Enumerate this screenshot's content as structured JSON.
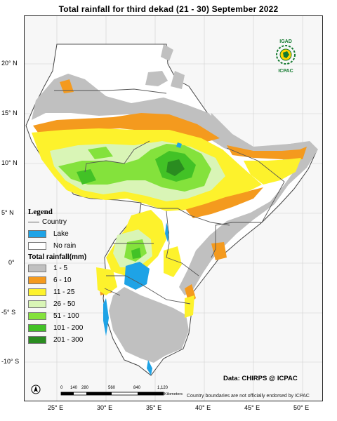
{
  "title": "Total rainfall  for third  dekad (21 - 30)  September 2022",
  "latitude_labels": [
    "20° N",
    "15° N",
    "10° N",
    "5° N",
    "0°",
    "-5° S",
    "-10° S"
  ],
  "longitude_labels": [
    "25° E",
    "30° E",
    "35° E",
    "40° E",
    "45° E",
    "50° E"
  ],
  "legend": {
    "title": "Legend",
    "country_label": "Country",
    "lake_label": "Lake",
    "no_rain_label": "No rain",
    "rain_title": "Total rainfall(mm)",
    "lake_color": "#1ea3e6",
    "classes": [
      {
        "label": "1 - 5",
        "color": "#c0c0c0"
      },
      {
        "label": "6 - 10",
        "color": "#f49a1e"
      },
      {
        "label": "11 - 25",
        "color": "#fdf22c"
      },
      {
        "label": "26 - 50",
        "color": "#d9f5b6"
      },
      {
        "label": "51 - 100",
        "color": "#84e23c"
      },
      {
        "label": "101 - 200",
        "color": "#42c226"
      },
      {
        "label": "201 - 300",
        "color": "#2a8c20"
      }
    ]
  },
  "logo": {
    "top_text": "IGAD",
    "bottom_text": "ICPAC"
  },
  "data_credit": "Data: CHIRPS @ ICPAC",
  "disclaimer": "Country boundaries are not officially endorsed by ICPAC",
  "scale": {
    "ticks": [
      "0",
      "140",
      "280",
      "560",
      "840",
      "1,120"
    ],
    "unit": "Kilometers"
  },
  "north_arrow_icon": "north-arrow-icon"
}
